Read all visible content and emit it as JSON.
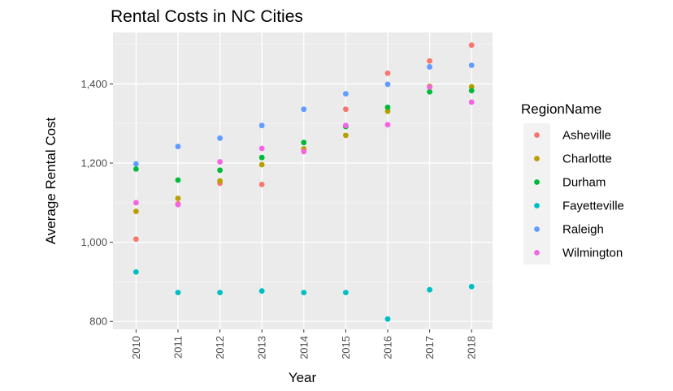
{
  "chart_data": {
    "type": "scatter",
    "title": "Rental Costs in NC Cities",
    "xlabel": "Year",
    "ylabel": "Average Rental Cost",
    "x": [
      "2010",
      "2011",
      "2012",
      "2013",
      "2014",
      "2015",
      "2016",
      "2017",
      "2018"
    ],
    "ylim": [
      780,
      1530
    ],
    "yticks": [
      800,
      1000,
      1200,
      1400
    ],
    "ytick_labels": [
      "800",
      "1,000",
      "1,200",
      "1,400"
    ],
    "grid": true,
    "legend": {
      "title": "RegionName",
      "placement": "right"
    },
    "series": [
      {
        "name": "Asheville",
        "color": "#F8766D",
        "values": [
          1008,
          1097,
          1149,
          1146,
          1235,
          1336,
          1427,
          1458,
          1498
        ]
      },
      {
        "name": "Charlotte",
        "color": "#B79F00",
        "values": [
          1078,
          1111,
          1155,
          1196,
          1236,
          1270,
          1331,
          1394,
          1393
        ]
      },
      {
        "name": "Durham",
        "color": "#00BA38",
        "values": [
          1185,
          1157,
          1182,
          1214,
          1252,
          1292,
          1341,
          1380,
          1383
        ]
      },
      {
        "name": "Fayetteville",
        "color": "#00BFC4",
        "values": [
          925,
          873,
          873,
          877,
          873,
          873,
          806,
          880,
          888
        ]
      },
      {
        "name": "Raleigh",
        "color": "#619CFF",
        "values": [
          1198,
          1242,
          1263,
          1295,
          1336,
          1375,
          1399,
          1443,
          1447
        ]
      },
      {
        "name": "Wilmington",
        "color": "#F564E3",
        "values": [
          1100,
          1095,
          1203,
          1237,
          1229,
          1295,
          1297,
          1392,
          1354
        ]
      }
    ]
  }
}
